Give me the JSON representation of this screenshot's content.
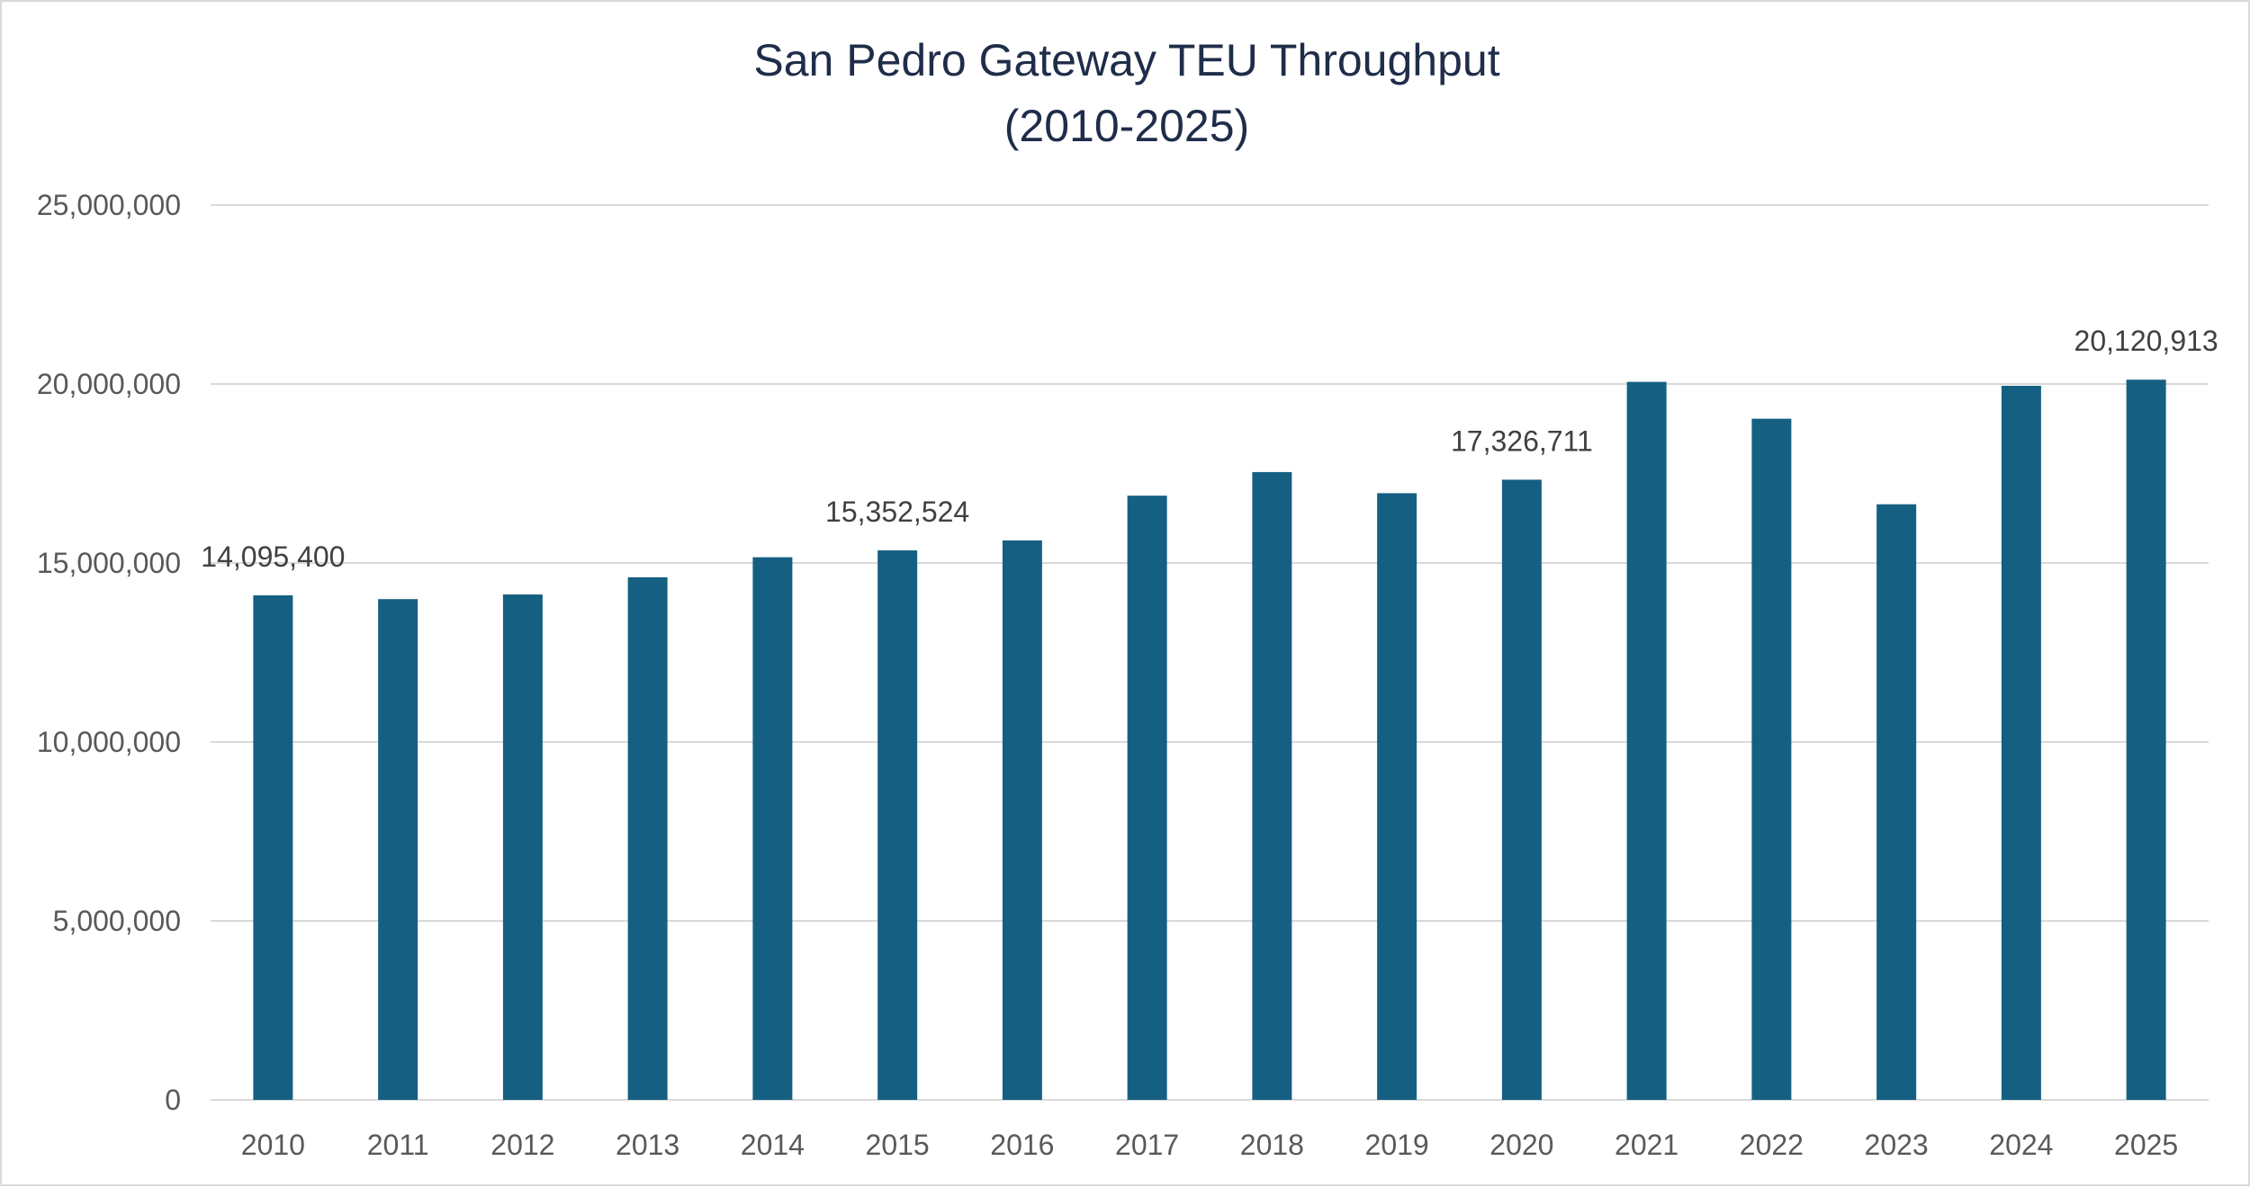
{
  "chart_data": {
    "type": "bar",
    "title_lines": [
      "San Pedro Gateway TEU Throughput",
      "(2010-2025)"
    ],
    "categories": [
      "2010",
      "2011",
      "2012",
      "2013",
      "2014",
      "2015",
      "2016",
      "2017",
      "2018",
      "2019",
      "2020",
      "2021",
      "2022",
      "2023",
      "2024",
      "2025"
    ],
    "values": [
      14095400,
      13990000,
      14120000,
      14600000,
      15160000,
      15352524,
      15630000,
      16880000,
      17540000,
      16950000,
      17326711,
      20060000,
      19030000,
      16640000,
      19950000,
      20120913
    ],
    "data_labels": [
      {
        "index": 0,
        "text": "14,095,400"
      },
      {
        "index": 5,
        "text": "15,352,524"
      },
      {
        "index": 10,
        "text": "17,326,711"
      },
      {
        "index": 15,
        "text": "20,120,913"
      }
    ],
    "y_ticks": [
      0,
      5000000,
      10000000,
      15000000,
      20000000,
      25000000
    ],
    "y_tick_labels": [
      "0",
      "5,000,000",
      "10,000,000",
      "15,000,000",
      "20,000,000",
      "25,000,000"
    ],
    "ylim": [
      0,
      25000000
    ],
    "xlabel": "",
    "ylabel": "",
    "grid": true,
    "legend": "none",
    "bar_color": "#156082"
  }
}
